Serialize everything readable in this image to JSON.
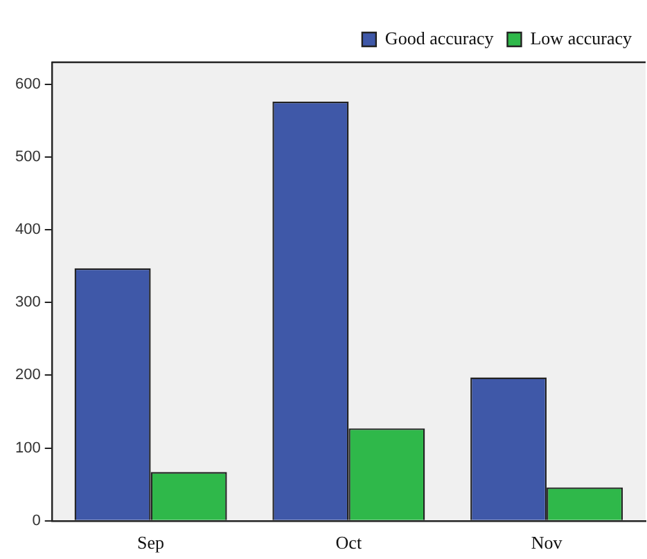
{
  "chart_data": {
    "type": "bar",
    "categories": [
      "Sep",
      "Oct",
      "Nov"
    ],
    "series": [
      {
        "name": "Good accuracy",
        "color": "#3f58a8",
        "values": [
          347,
          576,
          197
        ]
      },
      {
        "name": "Low accuracy",
        "color": "#2fb84a",
        "values": [
          67,
          127,
          46
        ]
      }
    ],
    "ylim": [
      0,
      630
    ],
    "yticks": [
      0,
      100,
      200,
      300,
      400,
      500,
      600
    ],
    "grid": false,
    "legend": "top right"
  }
}
